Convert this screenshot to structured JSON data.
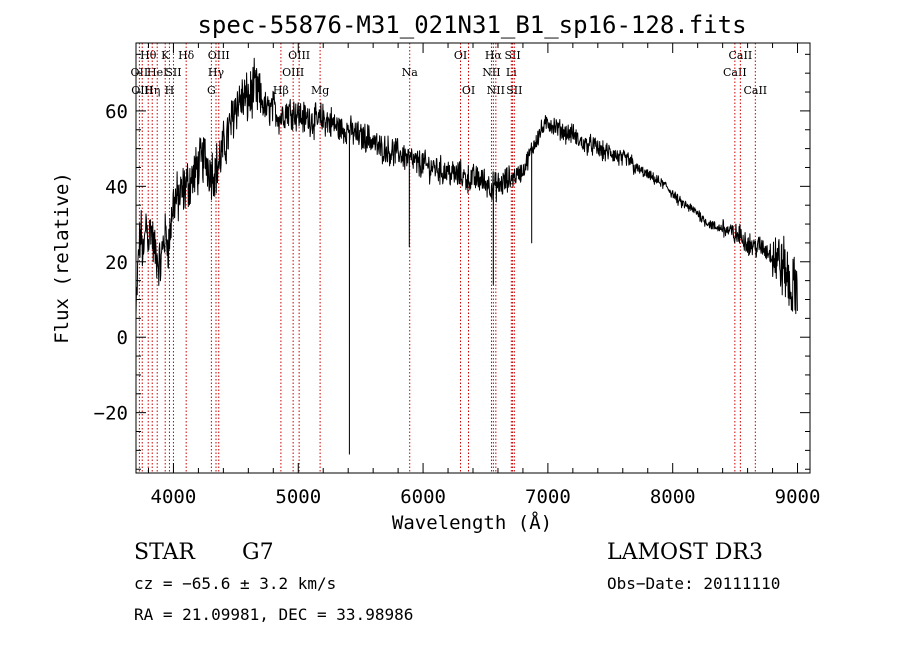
{
  "chart_data": {
    "type": "line",
    "title": "spec-55876-M31_021N31_B1_sp16-128.fits",
    "xlabel": "Wavelength (Å)",
    "ylabel": "Flux (relative)",
    "xlim": [
      3700,
      9100
    ],
    "ylim": [
      -36,
      78
    ],
    "x_ticks": [
      4000,
      5000,
      6000,
      7000,
      8000,
      9000
    ],
    "x_tick_labels": [
      "4000",
      "5000",
      "6000",
      "7000",
      "8000",
      "9000"
    ],
    "y_ticks": [
      -20,
      0,
      20,
      40,
      60
    ],
    "y_tick_labels": [
      "−20",
      "0",
      "20",
      "40",
      "60"
    ],
    "grid": false,
    "series": [
      {
        "name": "flux",
        "color": "#000000",
        "x": [
          3700,
          3720,
          3740,
          3760,
          3780,
          3800,
          3820,
          3840,
          3860,
          3880,
          3900,
          3920,
          3940,
          3960,
          3980,
          4000,
          4050,
          4100,
          4150,
          4200,
          4250,
          4300,
          4350,
          4400,
          4450,
          4500,
          4550,
          4600,
          4650,
          4700,
          4750,
          4800,
          4850,
          4900,
          4950,
          5000,
          5050,
          5100,
          5150,
          5200,
          5250,
          5300,
          5350,
          5400,
          5450,
          5500,
          5550,
          5600,
          5650,
          5700,
          5750,
          5800,
          5850,
          5900,
          5950,
          6000,
          6050,
          6100,
          6150,
          6200,
          6250,
          6300,
          6350,
          6400,
          6450,
          6500,
          6550,
          6600,
          6650,
          6700,
          6750,
          6800,
          6850,
          6900,
          6950,
          7000,
          7050,
          7100,
          7150,
          7200,
          7250,
          7300,
          7350,
          7400,
          7450,
          7500,
          7550,
          7600,
          7650,
          7700,
          7750,
          7800,
          7850,
          7900,
          7950,
          8000,
          8050,
          8100,
          8150,
          8200,
          8250,
          8300,
          8350,
          8400,
          8450,
          8500,
          8550,
          8600,
          8650,
          8700,
          8750,
          8800,
          8850,
          8900,
          8950,
          9000
        ],
        "y": [
          5,
          22,
          28,
          20,
          31,
          26,
          30,
          24,
          22,
          20,
          19,
          26,
          27,
          24,
          30,
          36,
          37,
          40,
          42,
          45,
          48,
          44,
          45,
          50,
          55,
          62,
          63,
          63,
          66,
          63,
          60,
          61,
          58,
          60,
          60,
          59,
          58,
          58,
          57,
          58,
          57,
          56,
          55,
          55,
          54,
          53,
          53,
          52,
          50,
          50,
          49,
          49,
          48,
          47,
          46,
          46,
          45,
          45,
          44,
          44,
          43,
          43,
          42,
          42,
          42,
          41,
          40,
          40,
          41,
          42,
          43,
          44,
          48,
          52,
          55,
          57,
          56,
          55,
          54,
          54,
          52,
          51,
          51,
          50,
          49,
          49,
          48,
          47,
          47,
          45,
          44,
          43,
          42,
          41,
          40,
          38,
          36,
          35,
          34,
          33,
          31,
          30,
          29,
          29,
          28,
          27,
          27,
          25,
          24,
          24,
          23,
          22,
          20,
          18,
          12,
          14
        ]
      }
    ],
    "absorption_spikes": [
      {
        "x": 5410,
        "y": -31
      },
      {
        "x": 5890,
        "y": 24
      },
      {
        "x": 6563,
        "y": 14
      },
      {
        "x": 6870,
        "y": 25
      }
    ],
    "line_markers": [
      {
        "x": 3727,
        "label": "OII",
        "row": 1
      },
      {
        "x": 3750,
        "label": "OIII",
        "row": 2
      },
      {
        "x": 3798,
        "label": "Hθ",
        "row": 0
      },
      {
        "x": 3830,
        "label": "Hη",
        "row": 2
      },
      {
        "x": 3870,
        "label": "HeI",
        "row": 1
      },
      {
        "x": 3934,
        "label": "K",
        "row": 0
      },
      {
        "x": 3968,
        "label": "H",
        "row": 2
      },
      {
        "x": 4000,
        "label": "SII",
        "row": 1
      },
      {
        "x": 4102,
        "label": "Hδ",
        "row": 0
      },
      {
        "x": 4304,
        "label": "G",
        "row": 2
      },
      {
        "x": 4341,
        "label": "Hγ",
        "row": 1
      },
      {
        "x": 4363,
        "label": "OIII",
        "row": 0
      },
      {
        "x": 4861,
        "label": "Hβ",
        "row": 2
      },
      {
        "x": 4959,
        "label": "OIII",
        "row": 1
      },
      {
        "x": 5007,
        "label": "OIII",
        "row": 0
      },
      {
        "x": 5175,
        "label": "Mg",
        "row": 2
      },
      {
        "x": 5893,
        "label": "Na",
        "row": 1
      },
      {
        "x": 6300,
        "label": "OI",
        "row": 0
      },
      {
        "x": 6364,
        "label": "OI",
        "row": 2
      },
      {
        "x": 6548,
        "label": "NII",
        "row": 1
      },
      {
        "x": 6563,
        "label": "Hα",
        "row": 0
      },
      {
        "x": 6583,
        "label": "NII",
        "row": 2
      },
      {
        "x": 6707,
        "label": "Li",
        "row": 1
      },
      {
        "x": 6717,
        "label": "SII",
        "row": 0
      },
      {
        "x": 6731,
        "label": "SII",
        "row": 2
      },
      {
        "x": 8498,
        "label": "CaII",
        "row": 1
      },
      {
        "x": 8542,
        "label": "CaII",
        "row": 0
      },
      {
        "x": 8662,
        "label": "CaII",
        "row": 2
      }
    ]
  },
  "info": {
    "object_class": "STAR",
    "subclass": "G7",
    "survey": "LAMOST DR3",
    "redshift": "cz = −65.6 ± 3.2 km/s",
    "obs_date": "Obs−Date: 20111110",
    "coords": "RA =  21.09981, DEC =  33.98986"
  },
  "colors": {
    "spectrum": "#000000",
    "marker_line": "#cc0000",
    "axes": "#000000"
  }
}
